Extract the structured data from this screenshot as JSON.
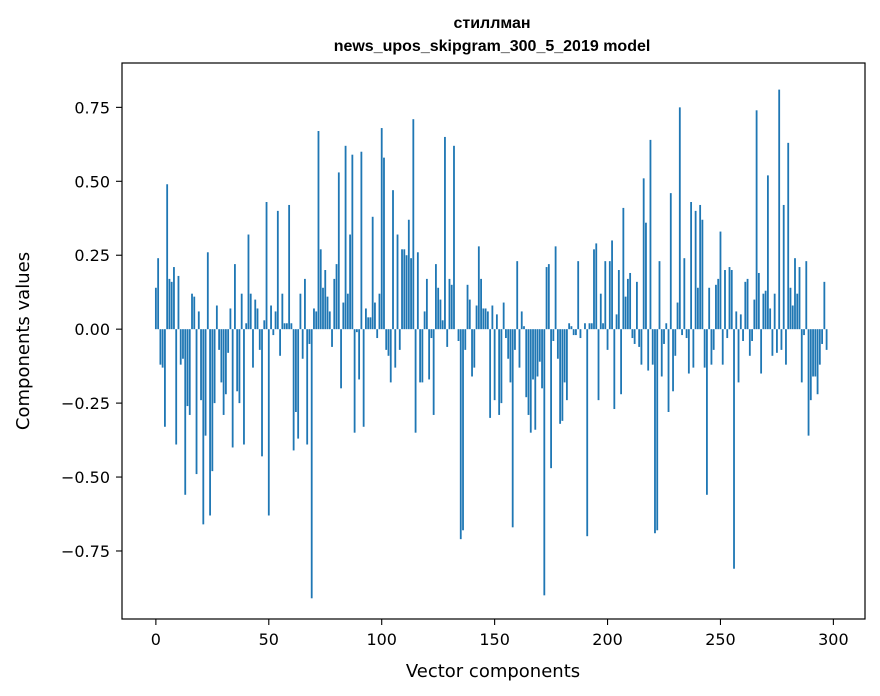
{
  "chart_data": {
    "type": "bar",
    "title": "стиллман",
    "subtitle": "news_upos_skipgram_300_5_2019 model",
    "xlabel": "Vector components",
    "ylabel": "Components values",
    "xlim": [
      -15,
      314
    ],
    "ylim": [
      -0.98,
      0.9
    ],
    "xticks": [
      0,
      50,
      100,
      150,
      200,
      250,
      300
    ],
    "yticks": [
      -0.75,
      -0.5,
      -0.25,
      0.0,
      0.25,
      0.5,
      0.75
    ],
    "ytick_labels": [
      "−0.75",
      "−0.50",
      "−0.25",
      "0.00",
      "0.25",
      "0.50",
      "0.75"
    ],
    "color": "#1f77b4",
    "values": [
      0.14,
      0.24,
      -0.12,
      -0.13,
      -0.33,
      0.49,
      0.17,
      0.16,
      0.21,
      -0.39,
      0.18,
      -0.12,
      -0.1,
      -0.56,
      -0.26,
      -0.29,
      0.12,
      0.11,
      -0.49,
      0.06,
      -0.24,
      -0.66,
      -0.36,
      0.26,
      -0.63,
      -0.48,
      -0.25,
      0.08,
      -0.07,
      -0.18,
      -0.29,
      -0.22,
      -0.08,
      0.07,
      -0.4,
      0.22,
      -0.21,
      -0.25,
      0.12,
      -0.39,
      0.02,
      0.32,
      0.12,
      -0.13,
      0.1,
      0.07,
      -0.07,
      -0.43,
      0.03,
      0.43,
      -0.63,
      0.08,
      -0.02,
      0.06,
      0.4,
      -0.09,
      0.12,
      0.02,
      0.02,
      0.42,
      0.02,
      -0.41,
      -0.28,
      -0.37,
      0.12,
      -0.1,
      0.17,
      -0.39,
      -0.05,
      -0.91,
      0.07,
      0.06,
      0.67,
      0.27,
      0.14,
      0.2,
      0.11,
      0.06,
      -0.06,
      0.17,
      0.22,
      0.53,
      -0.2,
      0.09,
      0.62,
      0.12,
      0.32,
      0.59,
      -0.35,
      -0.01,
      -0.17,
      0.6,
      -0.33,
      0.07,
      0.04,
      0.04,
      0.38,
      0.09,
      -0.03,
      0.12,
      0.68,
      0.58,
      -0.07,
      -0.09,
      -0.18,
      0.47,
      -0.13,
      0.32,
      -0.07,
      0.27,
      0.27,
      0.25,
      0.37,
      0.24,
      0.71,
      -0.35,
      0.26,
      -0.18,
      -0.18,
      0.06,
      0.17,
      -0.17,
      -0.03,
      -0.29,
      0.22,
      0.14,
      0.1,
      0.03,
      0.65,
      -0.06,
      0.17,
      0.15,
      0.62,
      0.0,
      -0.04,
      -0.71,
      -0.68,
      -0.07,
      0.15,
      0.1,
      -0.16,
      -0.13,
      0.08,
      0.28,
      0.17,
      0.07,
      0.07,
      0.06,
      -0.3,
      0.08,
      -0.24,
      0.05,
      -0.29,
      -0.25,
      0.09,
      -0.03,
      -0.1,
      -0.18,
      -0.67,
      -0.07,
      0.23,
      -0.13,
      0.06,
      0.01,
      -0.23,
      -0.29,
      -0.35,
      -0.17,
      -0.34,
      -0.16,
      -0.11,
      -0.2,
      -0.9,
      0.21,
      0.22,
      -0.47,
      -0.04,
      0.28,
      -0.1,
      -0.32,
      -0.31,
      -0.18,
      -0.24,
      0.02,
      0.01,
      -0.02,
      -0.02,
      0.23,
      -0.03,
      0.0,
      0.02,
      -0.7,
      0.02,
      0.02,
      0.27,
      0.29,
      -0.24,
      0.12,
      0.02,
      0.23,
      -0.07,
      0.23,
      0.3,
      -0.27,
      0.05,
      0.2,
      -0.22,
      0.41,
      0.11,
      0.17,
      0.19,
      -0.03,
      -0.05,
      0.16,
      -0.06,
      -0.12,
      0.51,
      0.36,
      -0.14,
      0.64,
      -0.12,
      -0.69,
      -0.68,
      0.23,
      -0.16,
      -0.05,
      0.02,
      -0.28,
      0.46,
      -0.21,
      -0.09,
      0.09,
      0.75,
      -0.02,
      0.24,
      -0.03,
      -0.15,
      0.43,
      -0.13,
      0.4,
      0.14,
      0.42,
      0.37,
      -0.13,
      -0.56,
      0.14,
      -0.12,
      -0.07,
      0.15,
      0.17,
      0.33,
      -0.12,
      0.2,
      -0.03,
      0.21,
      0.2,
      -0.81,
      0.06,
      -0.18,
      0.05,
      -0.04,
      0.16,
      0.17,
      -0.09,
      -0.04,
      0.1,
      0.74,
      0.19,
      -0.15,
      0.12,
      0.13,
      0.52,
      0.07,
      -0.09,
      0.12,
      -0.08,
      0.81,
      -0.07,
      0.42,
      -0.12,
      0.63,
      0.14,
      0.08,
      0.24,
      0.12,
      0.21,
      -0.18,
      -0.02,
      0.23,
      -0.36,
      -0.24,
      -0.16,
      -0.16,
      -0.22,
      -0.12,
      -0.05,
      0.16,
      -0.07
    ]
  }
}
